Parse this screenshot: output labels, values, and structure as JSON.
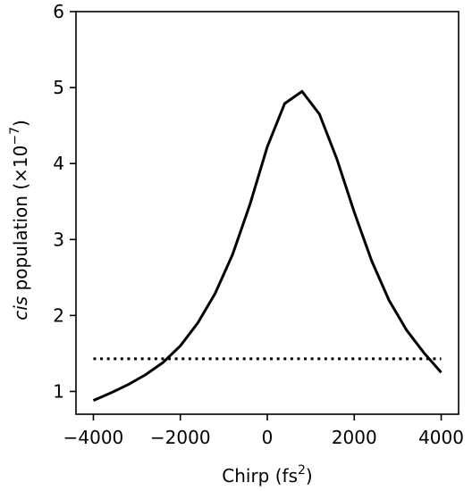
{
  "chart_data": {
    "type": "line",
    "title": "",
    "xlabel": {
      "text": "Chirp (fs",
      "superscript": "2",
      "suffix": ")"
    },
    "ylabel": {
      "italic": "cis",
      "text": " population (×10",
      "superscript": "−7",
      "suffix": ")"
    },
    "xlim": [
      -4400,
      4400
    ],
    "ylim": [
      0.7,
      6.0
    ],
    "x_ticks": [
      -4000,
      -2000,
      0,
      2000,
      4000
    ],
    "x_tick_labels": [
      "−4000",
      "−2000",
      "0",
      "2000",
      "4000"
    ],
    "y_ticks": [
      1,
      2,
      3,
      4,
      5,
      6
    ],
    "y_tick_labels": [
      "1",
      "2",
      "3",
      "4",
      "5",
      "6"
    ],
    "grid": false,
    "series": [
      {
        "style": "solid",
        "color": "#000000",
        "x": [
          -4000,
          -3600,
          -3200,
          -2800,
          -2400,
          -2000,
          -1600,
          -1200,
          -800,
          -400,
          0,
          400,
          800,
          1200,
          1600,
          2000,
          2400,
          2800,
          3200,
          3600,
          4000
        ],
        "y": [
          0.88,
          0.98,
          1.09,
          1.22,
          1.38,
          1.6,
          1.9,
          2.29,
          2.8,
          3.46,
          4.22,
          4.79,
          4.95,
          4.65,
          4.06,
          3.36,
          2.72,
          2.2,
          1.81,
          1.51,
          1.25
        ]
      },
      {
        "style": "dotted",
        "color": "#000000",
        "x": [
          -4000,
          4000
        ],
        "y": [
          1.43,
          1.43
        ]
      }
    ]
  }
}
